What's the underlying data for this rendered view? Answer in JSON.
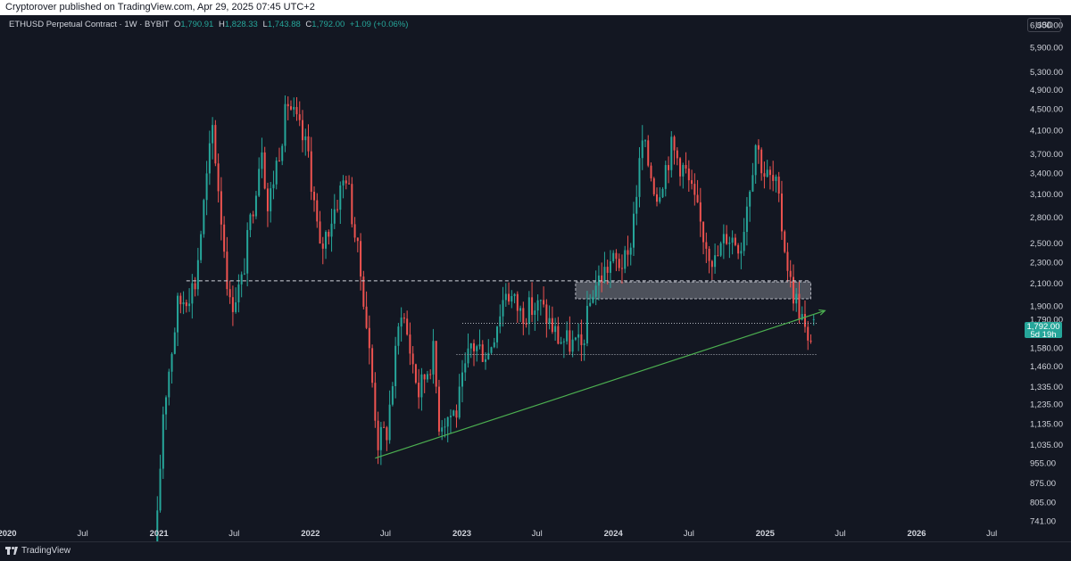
{
  "header": {
    "publisher_text": "Cryptorover published on TradingView.com, Apr 29, 2025 07:45 UTC+2"
  },
  "legend": {
    "symbol": "ETHUSD Perpetual Contract · 1W · BYBIT",
    "o_label": "O",
    "o_value": "1,790.91",
    "h_label": "H",
    "h_value": "1,828.33",
    "l_label": "L",
    "l_value": "1,743.88",
    "c_label": "C",
    "c_value": "1,792.00",
    "change": "+1.09 (+0.06%)"
  },
  "currency_button": "USD",
  "current_price": {
    "value": "1,792.00",
    "countdown": "5d 19h"
  },
  "footer": {
    "brand": "TradingView"
  },
  "colors": {
    "background": "#131722",
    "up": "#26a69a",
    "down": "#ef5350",
    "trendline": "#4caf50",
    "grid_text": "#d1d4dc"
  },
  "chart_data": {
    "type": "candlestick",
    "title": "ETHUSD Perpetual Contract · 1W · BYBIT",
    "y_scale": "log",
    "ylim": [
      700,
      7000
    ],
    "y_ticks": [
      741,
      805,
      875,
      955,
      1035,
      1135,
      1235,
      1335,
      1460,
      1580,
      1790,
      1900,
      2100,
      2300,
      2500,
      2800,
      3100,
      3400,
      3700,
      4100,
      4500,
      4900,
      5300,
      5900,
      6500
    ],
    "y_tick_labels": [
      "741.00",
      "805.00",
      "875.00",
      "955.00",
      "1,035.00",
      "1,135.00",
      "1,235.00",
      "1,335.00",
      "1,460.00",
      "1,580.00",
      "1,790.00",
      "1,900.00",
      "2,100.00",
      "2,300.00",
      "2,500.00",
      "2,800.00",
      "3,100.00",
      "3,400.00",
      "3,700.00",
      "4,100.00",
      "4,500.00",
      "4,900.00",
      "5,300.00",
      "5,900.00",
      "6,500.00"
    ],
    "x_range": [
      "2020-01-01",
      "2026-09-01"
    ],
    "x_ticks": [
      {
        "date": "2020-01-01",
        "label": "2020"
      },
      {
        "date": "2020-07-01",
        "label": "Jul"
      },
      {
        "date": "2021-01-01",
        "label": "2021"
      },
      {
        "date": "2021-07-01",
        "label": "Jul"
      },
      {
        "date": "2022-01-01",
        "label": "2022"
      },
      {
        "date": "2022-07-01",
        "label": "Jul"
      },
      {
        "date": "2023-01-01",
        "label": "2023"
      },
      {
        "date": "2023-07-01",
        "label": "Jul"
      },
      {
        "date": "2024-01-01",
        "label": "2024"
      },
      {
        "date": "2024-07-01",
        "label": "Jul"
      },
      {
        "date": "2025-01-01",
        "label": "2025"
      },
      {
        "date": "2025-07-01",
        "label": "Jul"
      },
      {
        "date": "2026-01-01",
        "label": "2026"
      },
      {
        "date": "2026-07-01",
        "label": "Jul"
      }
    ],
    "anchors": [
      [
        "2020-12-28",
        741
      ],
      [
        "2021-01-11",
        1200
      ],
      [
        "2021-02-15",
        1900
      ],
      [
        "2021-03-29",
        2100
      ],
      [
        "2021-05-10",
        4150
      ],
      [
        "2021-06-21",
        1900
      ],
      [
        "2021-07-19",
        2100
      ],
      [
        "2021-09-06",
        3900
      ],
      [
        "2021-09-20",
        2900
      ],
      [
        "2021-11-08",
        4650
      ],
      [
        "2021-12-27",
        3700
      ],
      [
        "2022-01-24",
        2400
      ],
      [
        "2022-03-28",
        3400
      ],
      [
        "2022-05-09",
        2000
      ],
      [
        "2022-06-13",
        1050
      ],
      [
        "2022-07-04",
        1100
      ],
      [
        "2022-08-08",
        1900
      ],
      [
        "2022-09-19",
        1300
      ],
      [
        "2022-10-24",
        1550
      ],
      [
        "2022-11-07",
        1150
      ],
      [
        "2022-12-19",
        1200
      ],
      [
        "2023-01-23",
        1600
      ],
      [
        "2023-03-06",
        1550
      ],
      [
        "2023-04-17",
        2050
      ],
      [
        "2023-05-22",
        1850
      ],
      [
        "2023-07-10",
        1900
      ],
      [
        "2023-08-21",
        1650
      ],
      [
        "2023-10-16",
        1580
      ],
      [
        "2023-11-13",
        2050
      ],
      [
        "2023-12-25",
        2300
      ],
      [
        "2024-02-05",
        2300
      ],
      [
        "2024-03-11",
        3900
      ],
      [
        "2024-04-15",
        3100
      ],
      [
        "2024-05-20",
        3800
      ],
      [
        "2024-06-24",
        3400
      ],
      [
        "2024-08-05",
        2600
      ],
      [
        "2024-09-02",
        2300
      ],
      [
        "2024-09-30",
        2600
      ],
      [
        "2024-11-04",
        2500
      ],
      [
        "2024-12-09",
        3900
      ],
      [
        "2024-12-30",
        3400
      ],
      [
        "2025-01-27",
        3200
      ],
      [
        "2025-02-10",
        2700
      ],
      [
        "2025-03-03",
        2100
      ],
      [
        "2025-03-31",
        1800
      ],
      [
        "2025-04-14",
        1580
      ],
      [
        "2025-04-28",
        1792
      ]
    ],
    "last_candle": {
      "date": "2025-04-28",
      "open": 1790.91,
      "high": 1828.33,
      "low": 1743.88,
      "close": 1792.0
    },
    "annotations": {
      "upper_resistance_dashed": 2120,
      "zone_top": 2110,
      "zone_bottom": 1960,
      "dotted_level_1": 1760,
      "dotted_level_2": 1535,
      "trendline": [
        [
          "2022-06-06",
          975
        ],
        [
          "2025-05-25",
          1860
        ]
      ]
    }
  }
}
